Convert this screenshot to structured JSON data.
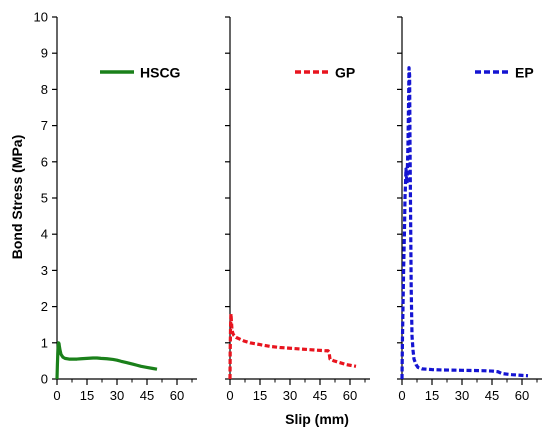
{
  "chart_data": {
    "type": "line",
    "ylabel": "Bond Stress (MPa)",
    "xlabel": "Slip (mm)",
    "ylim": [
      0,
      10
    ],
    "yticks": [
      "0",
      "1",
      "2",
      "3",
      "4",
      "5",
      "6",
      "7",
      "8",
      "9",
      "10"
    ],
    "xlim": [
      0,
      70
    ],
    "xticks": [
      "0",
      "15",
      "30",
      "45",
      "60"
    ],
    "xminor": [
      7.5,
      22.5,
      37.5,
      52.5,
      67.5
    ],
    "legend_placement": "top-right of each panel",
    "panels": [
      {
        "name": "HSCG",
        "color": "#1a801a",
        "dash": "solid",
        "x": [
          0,
          0.2,
          0.4,
          0.6,
          0.8,
          1.0,
          1.2,
          1.5,
          2,
          3,
          4,
          6,
          8,
          10,
          12,
          15,
          18,
          20,
          22,
          25,
          28,
          30,
          32,
          35,
          38,
          40,
          42,
          45,
          48,
          50
        ],
        "y": [
          0,
          0.4,
          0.7,
          0.9,
          1.0,
          0.98,
          0.9,
          0.8,
          0.68,
          0.6,
          0.57,
          0.55,
          0.55,
          0.55,
          0.56,
          0.57,
          0.58,
          0.58,
          0.57,
          0.56,
          0.54,
          0.52,
          0.49,
          0.45,
          0.41,
          0.38,
          0.35,
          0.32,
          0.29,
          0.27
        ]
      },
      {
        "name": "GP",
        "color": "#e8141e",
        "dash": "dashed",
        "x": [
          0,
          0.1,
          0.3,
          0.5,
          0.7,
          1.0,
          1.5,
          2,
          3,
          5,
          7,
          10,
          15,
          20,
          25,
          30,
          35,
          40,
          45,
          48,
          49,
          49.5,
          50,
          52,
          55,
          58,
          60,
          62,
          63
        ],
        "y": [
          0,
          0.8,
          1.5,
          1.8,
          1.6,
          1.35,
          1.25,
          1.2,
          1.15,
          1.1,
          1.05,
          1.0,
          0.95,
          0.9,
          0.87,
          0.85,
          0.83,
          0.81,
          0.79,
          0.78,
          0.78,
          0.75,
          0.55,
          0.5,
          0.45,
          0.4,
          0.38,
          0.36,
          0.35
        ]
      },
      {
        "name": "EP",
        "color": "#1414d2",
        "dash": "dashed",
        "x": [
          0,
          0.2,
          0.5,
          0.8,
          1.2,
          1.5,
          2.0,
          2.5,
          3.0,
          3.3,
          3.5,
          3.8,
          4.0,
          4.3,
          4.6,
          5.0,
          5.5,
          6.0,
          7,
          8,
          10,
          15,
          20,
          30,
          40,
          45,
          48,
          50,
          55,
          60,
          63
        ],
        "y": [
          0,
          1.0,
          2.0,
          3.0,
          4.0,
          5.0,
          5.8,
          5.4,
          6.5,
          7.7,
          8.6,
          8.4,
          6.5,
          4.5,
          2.5,
          1.2,
          0.8,
          0.55,
          0.4,
          0.32,
          0.28,
          0.26,
          0.25,
          0.24,
          0.23,
          0.22,
          0.2,
          0.15,
          0.12,
          0.1,
          0.09
        ]
      }
    ]
  }
}
